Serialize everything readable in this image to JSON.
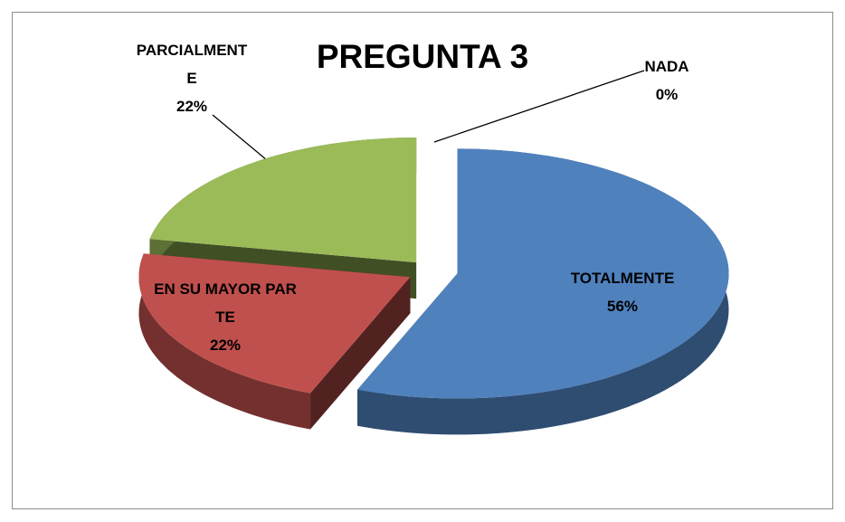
{
  "chart_data": {
    "type": "pie3d",
    "title": "PREGUNTA 3",
    "categories": [
      "TOTALMENTE",
      "EN SU MAYOR PARTE",
      "PARCIALMENTE",
      "NADA"
    ],
    "values": [
      56,
      22,
      22,
      0
    ],
    "value_labels": [
      "56%",
      "22%",
      "22%",
      "0%"
    ],
    "colors": [
      "#4f81bd",
      "#c0504d",
      "#9bbb59",
      "#8064a2"
    ]
  }
}
